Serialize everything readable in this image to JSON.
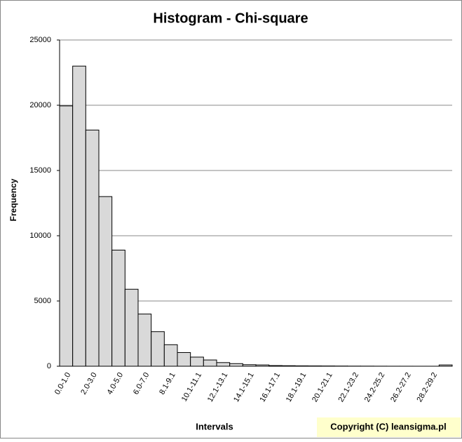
{
  "chart_data": {
    "type": "bar",
    "title": "Histogram - Chi-square",
    "x_label": "Intervals",
    "y_label": "Frequency",
    "categories": [
      "0.0-1.0",
      null,
      "2.0-3.0",
      null,
      "4.0-5.0",
      null,
      "6.0-7.0",
      null,
      "8.1-9.1",
      null,
      "10.1-11.1",
      null,
      "12.1-13.1",
      null,
      "14.1-15.1",
      null,
      "16.1-17.1",
      null,
      "18.1-19.1",
      null,
      "20.1-21.1",
      null,
      "22.1-23.2",
      null,
      "24.2-25.2",
      null,
      "26.2-27.2",
      null,
      "28.2-29.2",
      null
    ],
    "values": [
      19950,
      23000,
      18100,
      13000,
      8900,
      5900,
      4000,
      2650,
      1650,
      1050,
      700,
      480,
      280,
      200,
      120,
      100,
      50,
      40,
      30,
      25,
      20,
      15,
      10,
      8,
      5,
      3,
      2,
      1,
      1,
      100
    ],
    "color": "#d9d9d9",
    "ylim": [
      0,
      25000
    ],
    "yticks": [
      0,
      5000,
      10000,
      15000,
      20000,
      25000
    ],
    "grid": true,
    "copyright": "Copyright (C) leansigma.pl"
  }
}
